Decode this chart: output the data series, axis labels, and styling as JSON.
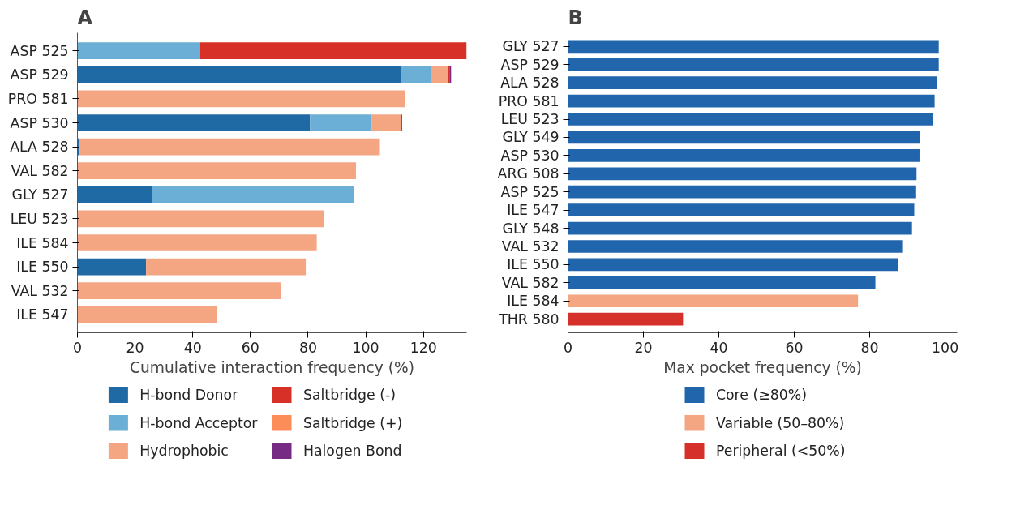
{
  "chart_data": [
    {
      "type": "bar",
      "title": "A",
      "orientation": "horizontal",
      "stacked": true,
      "xlabel": "Cumulative interaction frequency (%)",
      "categories": [
        "ASP 525",
        "ASP 529",
        "PRO 581",
        "ASP 530",
        "ALA 528",
        "VAL 582",
        "GLY 527",
        "LEU 523",
        "ILE 584",
        "ILE 550",
        "VAL 532",
        "ILE 547"
      ],
      "series": [
        {
          "name": "H-bond Donor",
          "color": "#1f6aa5",
          "values": [
            null,
            112.1,
            null,
            80.7,
            0.5,
            null,
            26.0,
            null,
            null,
            23.8,
            null,
            null
          ]
        },
        {
          "name": "H-bond Acceptor",
          "color": "#6baed6",
          "values": [
            42.6,
            10.5,
            null,
            21.3,
            null,
            null,
            69.8,
            null,
            null,
            null,
            null,
            null
          ]
        },
        {
          "name": "Hydrophobic",
          "color": "#f4a582",
          "values": [
            null,
            5.8,
            113.7,
            10.1,
            104.4,
            96.6,
            null,
            85.4,
            83.0,
            55.4,
            70.5,
            48.4
          ]
        },
        {
          "name": "Saltbridge (-)",
          "color": "#d73027",
          "values": [
            92.4,
            0.8,
            null,
            null,
            null,
            null,
            null,
            null,
            null,
            null,
            null,
            null
          ]
        },
        {
          "name": "Saltbridge (+)",
          "color": "#fc8d59",
          "values": [
            null,
            null,
            null,
            null,
            null,
            null,
            null,
            null,
            null,
            null,
            null,
            null
          ]
        },
        {
          "name": "Halogen Bond",
          "color": "#762a83",
          "values": [
            null,
            0.4,
            null,
            0.5,
            null,
            null,
            null,
            null,
            null,
            null,
            null,
            null
          ]
        }
      ],
      "xlim": [
        0,
        135
      ],
      "xticks": [
        0,
        20,
        40,
        60,
        80,
        100,
        120
      ],
      "grid": false,
      "legend": "bottom"
    },
    {
      "type": "bar",
      "title": "B",
      "orientation": "horizontal",
      "stacked": true,
      "xlabel": "Max pocket frequency (%)",
      "categories": [
        "GLY 527",
        "ASP 529",
        "ALA 528",
        "PRO 581",
        "LEU 523",
        "GLY 549",
        "ASP 530",
        "ARG 508",
        "ASP 525",
        "ILE 547",
        "GLY 548",
        "VAL 532",
        "ILE 550",
        "VAL 582",
        "ILE 584",
        "THR 580"
      ],
      "series": [
        {
          "name": "Core (≥80%)",
          "color": "#2166ac",
          "values": [
            98.3,
            98.3,
            97.8,
            97.2,
            96.7,
            93.3,
            93.2,
            92.4,
            92.3,
            91.8,
            91.2,
            88.6,
            87.4,
            81.5,
            null,
            null
          ]
        },
        {
          "name": "Variable (50–80%)",
          "color": "#f4a582",
          "values": [
            null,
            null,
            null,
            null,
            null,
            null,
            null,
            null,
            null,
            null,
            null,
            null,
            null,
            null,
            76.9,
            null
          ]
        },
        {
          "name": "Peripheral (<50%)",
          "color": "#d6302a",
          "values": [
            null,
            null,
            null,
            null,
            null,
            null,
            null,
            null,
            null,
            null,
            null,
            null,
            null,
            null,
            null,
            30.5
          ]
        }
      ],
      "xlim": [
        0,
        103.2
      ],
      "xticks": [
        0,
        20,
        40,
        60,
        80,
        100
      ],
      "grid": false,
      "legend": "bottom"
    }
  ]
}
